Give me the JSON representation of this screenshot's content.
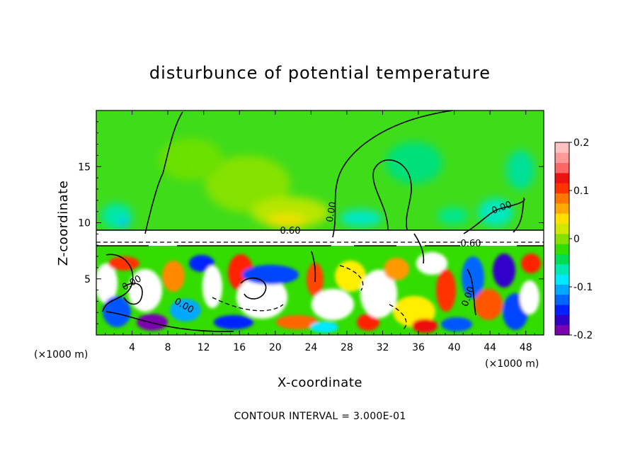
{
  "chart_data": {
    "type": "heatmap",
    "title": "disturbunce of potential temperature",
    "xlabel": "X-coordinate",
    "ylabel": "Z-coordinate",
    "x_unit": "(×1000 m)",
    "z_unit": "(×1000 m)",
    "xlim": [
      0,
      50
    ],
    "ylim": [
      0,
      20
    ],
    "x_ticks": [
      4,
      8,
      12,
      16,
      20,
      24,
      28,
      32,
      36,
      40,
      44,
      48
    ],
    "x_tick_labels": [
      "4",
      "8",
      "12",
      "16",
      "20",
      "24",
      "28",
      "32",
      "36",
      "40",
      "44",
      "48"
    ],
    "y_ticks": [
      5,
      10,
      15
    ],
    "y_tick_labels": [
      "5",
      "10",
      "15"
    ],
    "colorbar": {
      "range": [
        -0.2,
        0.2
      ],
      "ticks": [
        0.2,
        0.1,
        0,
        -0.1,
        -0.2
      ],
      "tick_labels": [
        "0.2",
        "0.1",
        "0",
        "-0.1",
        "-0.2"
      ],
      "colors": [
        "#7a00b0",
        "#3300c8",
        "#0022ff",
        "#0066ff",
        "#00a8ff",
        "#00e8ff",
        "#00e8b0",
        "#00dd55",
        "#33dd00",
        "#88e000",
        "#d0e800",
        "#ffe000",
        "#ffaa00",
        "#ff7700",
        "#ff3300",
        "#ee1111",
        "#ff6666",
        "#ff9999",
        "#ffc0c0"
      ]
    },
    "contour_labels": [
      "0.00",
      "0.00",
      "0.00",
      "0.60",
      "0.60",
      "0.00",
      "0.00"
    ],
    "annotation": "CONTOUR INTERVAL = 3.000E-01",
    "grid": false
  }
}
